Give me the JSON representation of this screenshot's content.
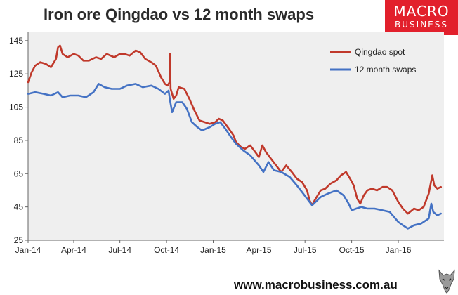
{
  "header": {
    "title": "Iron ore Qingdao vs 12 month swaps",
    "logo_line1": "MACRO",
    "logo_line2": "BUSINESS"
  },
  "footer": {
    "url": "www.macrobusiness.com.au"
  },
  "colors": {
    "qingdao": "#c0392b",
    "swaps": "#4472c4",
    "plot_bg": "#efefef",
    "brand": "#e2202c"
  },
  "chart_data": {
    "type": "line",
    "title": "Iron ore Qingdao vs 12 month swaps",
    "xlabel": "",
    "ylabel": "",
    "xlim": [
      "2014-01-01",
      "2016-03-31"
    ],
    "ylim": [
      25,
      150
    ],
    "yticks": [
      25,
      45,
      65,
      85,
      105,
      125,
      145
    ],
    "xticks": [
      "Jan-14",
      "Apr-14",
      "Jul-14",
      "Oct-14",
      "Jan-15",
      "Apr-15",
      "Jul-15",
      "Oct-15",
      "Jan-16"
    ],
    "grid": false,
    "legend": "top-right",
    "series": [
      {
        "name": "Qingdao spot",
        "points": [
          [
            "2014-01-01",
            120
          ],
          [
            "2014-01-08",
            126
          ],
          [
            "2014-01-15",
            130
          ],
          [
            "2014-01-25",
            132
          ],
          [
            "2014-02-05",
            131
          ],
          [
            "2014-02-15",
            129
          ],
          [
            "2014-02-25",
            134
          ],
          [
            "2014-03-01",
            141
          ],
          [
            "2014-03-05",
            142
          ],
          [
            "2014-03-10",
            137
          ],
          [
            "2014-03-20",
            135
          ],
          [
            "2014-04-01",
            137
          ],
          [
            "2014-04-10",
            136
          ],
          [
            "2014-04-20",
            133
          ],
          [
            "2014-05-01",
            133
          ],
          [
            "2014-05-15",
            135
          ],
          [
            "2014-05-25",
            134
          ],
          [
            "2014-06-05",
            137
          ],
          [
            "2014-06-20",
            135
          ],
          [
            "2014-07-01",
            137
          ],
          [
            "2014-07-10",
            137
          ],
          [
            "2014-07-20",
            136
          ],
          [
            "2014-08-01",
            139
          ],
          [
            "2014-08-10",
            138
          ],
          [
            "2014-08-20",
            134
          ],
          [
            "2014-09-01",
            132
          ],
          [
            "2014-09-10",
            130
          ],
          [
            "2014-09-20",
            123
          ],
          [
            "2014-09-28",
            119
          ],
          [
            "2014-10-03",
            118
          ],
          [
            "2014-10-07",
            120
          ],
          [
            "2014-10-08",
            137
          ],
          [
            "2014-10-09",
            116
          ],
          [
            "2014-10-15",
            110
          ],
          [
            "2014-10-20",
            112
          ],
          [
            "2014-10-25",
            117
          ],
          [
            "2014-11-05",
            116
          ],
          [
            "2014-11-15",
            110
          ],
          [
            "2014-11-25",
            103
          ],
          [
            "2014-12-05",
            97
          ],
          [
            "2014-12-15",
            96
          ],
          [
            "2014-12-25",
            95
          ],
          [
            "2015-01-05",
            96
          ],
          [
            "2015-01-12",
            98
          ],
          [
            "2015-01-20",
            97
          ],
          [
            "2015-02-01",
            92
          ],
          [
            "2015-02-10",
            88
          ],
          [
            "2015-02-15",
            84
          ],
          [
            "2015-02-25",
            81
          ],
          [
            "2015-03-05",
            80
          ],
          [
            "2015-03-15",
            82
          ],
          [
            "2015-03-25",
            78
          ],
          [
            "2015-04-01",
            75
          ],
          [
            "2015-04-08",
            82
          ],
          [
            "2015-04-15",
            78
          ],
          [
            "2015-04-25",
            74
          ],
          [
            "2015-05-05",
            70
          ],
          [
            "2015-05-15",
            66
          ],
          [
            "2015-05-25",
            70
          ],
          [
            "2015-06-05",
            66
          ],
          [
            "2015-06-15",
            62
          ],
          [
            "2015-06-25",
            60
          ],
          [
            "2015-07-05",
            55
          ],
          [
            "2015-07-10",
            49
          ],
          [
            "2015-07-15",
            46
          ],
          [
            "2015-07-20",
            49
          ],
          [
            "2015-08-01",
            55
          ],
          [
            "2015-08-10",
            56
          ],
          [
            "2015-08-20",
            59
          ],
          [
            "2015-09-01",
            61
          ],
          [
            "2015-09-10",
            64
          ],
          [
            "2015-09-20",
            66
          ],
          [
            "2015-09-28",
            62
          ],
          [
            "2015-10-05",
            58
          ],
          [
            "2015-10-12",
            50
          ],
          [
            "2015-10-18",
            47
          ],
          [
            "2015-10-25",
            52
          ],
          [
            "2015-11-01",
            55
          ],
          [
            "2015-11-10",
            56
          ],
          [
            "2015-11-20",
            55
          ],
          [
            "2015-12-01",
            57
          ],
          [
            "2015-12-10",
            57
          ],
          [
            "2015-12-20",
            55
          ],
          [
            "2016-01-01",
            48
          ],
          [
            "2016-01-10",
            44
          ],
          [
            "2016-01-20",
            41
          ],
          [
            "2016-02-01",
            44
          ],
          [
            "2016-02-10",
            43
          ],
          [
            "2016-02-20",
            45
          ],
          [
            "2016-03-01",
            53
          ],
          [
            "2016-03-08",
            64
          ],
          [
            "2016-03-12",
            58
          ],
          [
            "2016-03-18",
            56
          ],
          [
            "2016-03-25",
            57
          ]
        ]
      },
      {
        "name": "12 month swaps",
        "points": [
          [
            "2014-01-01",
            113
          ],
          [
            "2014-01-15",
            114
          ],
          [
            "2014-02-01",
            113
          ],
          [
            "2014-02-15",
            112
          ],
          [
            "2014-03-01",
            114
          ],
          [
            "2014-03-10",
            111
          ],
          [
            "2014-03-25",
            112
          ],
          [
            "2014-04-10",
            112
          ],
          [
            "2014-04-25",
            111
          ],
          [
            "2014-05-10",
            114
          ],
          [
            "2014-05-20",
            119
          ],
          [
            "2014-06-01",
            117
          ],
          [
            "2014-06-15",
            116
          ],
          [
            "2014-07-01",
            116
          ],
          [
            "2014-07-15",
            118
          ],
          [
            "2014-08-01",
            119
          ],
          [
            "2014-08-15",
            117
          ],
          [
            "2014-09-01",
            118
          ],
          [
            "2014-09-15",
            116
          ],
          [
            "2014-09-28",
            113
          ],
          [
            "2014-10-05",
            115
          ],
          [
            "2014-10-08",
            109
          ],
          [
            "2014-10-12",
            102
          ],
          [
            "2014-10-20",
            108
          ],
          [
            "2014-11-01",
            108
          ],
          [
            "2014-11-10",
            104
          ],
          [
            "2014-11-20",
            96
          ],
          [
            "2014-12-01",
            93
          ],
          [
            "2014-12-10",
            91
          ],
          [
            "2014-12-25",
            93
          ],
          [
            "2015-01-05",
            95
          ],
          [
            "2015-01-15",
            96
          ],
          [
            "2015-01-25",
            92
          ],
          [
            "2015-02-05",
            87
          ],
          [
            "2015-02-15",
            83
          ],
          [
            "2015-03-01",
            79
          ],
          [
            "2015-03-15",
            76
          ],
          [
            "2015-04-01",
            70
          ],
          [
            "2015-04-10",
            66
          ],
          [
            "2015-04-20",
            72
          ],
          [
            "2015-05-01",
            67
          ],
          [
            "2015-05-15",
            66
          ],
          [
            "2015-06-01",
            63
          ],
          [
            "2015-06-15",
            58
          ],
          [
            "2015-06-25",
            54
          ],
          [
            "2015-07-05",
            50
          ],
          [
            "2015-07-15",
            46
          ],
          [
            "2015-08-01",
            51
          ],
          [
            "2015-08-15",
            53
          ],
          [
            "2015-09-01",
            55
          ],
          [
            "2015-09-15",
            52
          ],
          [
            "2015-09-25",
            47
          ],
          [
            "2015-10-01",
            43
          ],
          [
            "2015-10-10",
            44
          ],
          [
            "2015-10-20",
            45
          ],
          [
            "2015-11-01",
            44
          ],
          [
            "2015-11-15",
            44
          ],
          [
            "2015-12-01",
            43
          ],
          [
            "2015-12-15",
            42
          ],
          [
            "2016-01-01",
            36
          ],
          [
            "2016-01-10",
            34
          ],
          [
            "2016-01-20",
            32
          ],
          [
            "2016-02-01",
            34
          ],
          [
            "2016-02-15",
            35
          ],
          [
            "2016-03-01",
            38
          ],
          [
            "2016-03-06",
            47
          ],
          [
            "2016-03-10",
            42
          ],
          [
            "2016-03-18",
            40
          ],
          [
            "2016-03-25",
            41
          ]
        ]
      }
    ]
  }
}
